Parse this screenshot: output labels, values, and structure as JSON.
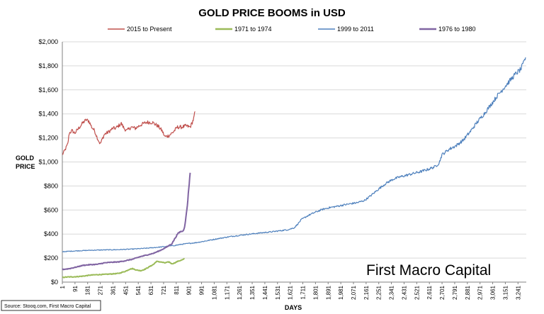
{
  "chart_data": {
    "type": "line",
    "title": "GOLD PRICE BOOMS in USD",
    "xlabel": "DAYS",
    "ylabel_line1": "GOLD",
    "ylabel_line2": "PRICE",
    "ylim": [
      0,
      2000
    ],
    "xlim": [
      1,
      3300
    ],
    "y_ticks": [
      {
        "value": 0,
        "label": "$0"
      },
      {
        "value": 200,
        "label": "$200"
      },
      {
        "value": 400,
        "label": "$400"
      },
      {
        "value": 600,
        "label": "$600"
      },
      {
        "value": 800,
        "label": "$800"
      },
      {
        "value": 1000,
        "label": "$1,000"
      },
      {
        "value": 1200,
        "label": "$1,200"
      },
      {
        "value": 1400,
        "label": "$1,400"
      },
      {
        "value": 1600,
        "label": "$1,600"
      },
      {
        "value": 1800,
        "label": "$1,800"
      },
      {
        "value": 2000,
        "label": "$2,000"
      }
    ],
    "x_ticks": [
      {
        "value": 1,
        "label": "1"
      },
      {
        "value": 91,
        "label": "91"
      },
      {
        "value": 181,
        "label": "181"
      },
      {
        "value": 271,
        "label": "271"
      },
      {
        "value": 361,
        "label": "361"
      },
      {
        "value": 451,
        "label": "451"
      },
      {
        "value": 541,
        "label": "541"
      },
      {
        "value": 631,
        "label": "631"
      },
      {
        "value": 721,
        "label": "721"
      },
      {
        "value": 811,
        "label": "811"
      },
      {
        "value": 901,
        "label": "901"
      },
      {
        "value": 991,
        "label": "991"
      },
      {
        "value": 1081,
        "label": "1,081"
      },
      {
        "value": 1171,
        "label": "1,171"
      },
      {
        "value": 1261,
        "label": "1,261"
      },
      {
        "value": 1351,
        "label": "1,351"
      },
      {
        "value": 1441,
        "label": "1,441"
      },
      {
        "value": 1531,
        "label": "1,531"
      },
      {
        "value": 1621,
        "label": "1,621"
      },
      {
        "value": 1711,
        "label": "1,711"
      },
      {
        "value": 1801,
        "label": "1,801"
      },
      {
        "value": 1891,
        "label": "1,891"
      },
      {
        "value": 1981,
        "label": "1,981"
      },
      {
        "value": 2071,
        "label": "2,071"
      },
      {
        "value": 2161,
        "label": "2,161"
      },
      {
        "value": 2251,
        "label": "2,251"
      },
      {
        "value": 2341,
        "label": "2,341"
      },
      {
        "value": 2431,
        "label": "2,431"
      },
      {
        "value": 2521,
        "label": "2,521"
      },
      {
        "value": 2611,
        "label": "2,611"
      },
      {
        "value": 2701,
        "label": "2,701"
      },
      {
        "value": 2791,
        "label": "2,791"
      },
      {
        "value": 2881,
        "label": "2,881"
      },
      {
        "value": 2971,
        "label": "2,971"
      },
      {
        "value": 3061,
        "label": "3,061"
      },
      {
        "value": 3151,
        "label": "3,151"
      },
      {
        "value": 3241,
        "label": "3,241"
      }
    ],
    "legend": [
      "2015 to Present",
      "1971 to 1974",
      "1999 to 2011",
      "1976 to 1980"
    ],
    "series": [
      {
        "name": "2015 to Present",
        "color": "#c0504d",
        "points": [
          [
            1,
            1060
          ],
          [
            20,
            1100
          ],
          [
            40,
            1150
          ],
          [
            50,
            1240
          ],
          [
            70,
            1260
          ],
          [
            90,
            1240
          ],
          [
            110,
            1270
          ],
          [
            130,
            1300
          ],
          [
            150,
            1330
          ],
          [
            170,
            1350
          ],
          [
            190,
            1340
          ],
          [
            210,
            1290
          ],
          [
            230,
            1260
          ],
          [
            250,
            1200
          ],
          [
            270,
            1150
          ],
          [
            285,
            1190
          ],
          [
            300,
            1230
          ],
          [
            330,
            1250
          ],
          [
            360,
            1280
          ],
          [
            380,
            1280
          ],
          [
            400,
            1300
          ],
          [
            420,
            1320
          ],
          [
            440,
            1280
          ],
          [
            460,
            1260
          ],
          [
            490,
            1290
          ],
          [
            520,
            1280
          ],
          [
            560,
            1310
          ],
          [
            600,
            1330
          ],
          [
            640,
            1330
          ],
          [
            680,
            1300
          ],
          [
            710,
            1260
          ],
          [
            730,
            1210
          ],
          [
            760,
            1220
          ],
          [
            790,
            1250
          ],
          [
            820,
            1290
          ],
          [
            850,
            1290
          ],
          [
            880,
            1300
          ],
          [
            910,
            1290
          ],
          [
            925,
            1330
          ],
          [
            935,
            1360
          ],
          [
            945,
            1420
          ]
        ]
      },
      {
        "name": "1971 to 1974",
        "color": "#9bbb59",
        "points": [
          [
            1,
            40
          ],
          [
            50,
            43
          ],
          [
            100,
            45
          ],
          [
            150,
            50
          ],
          [
            200,
            58
          ],
          [
            250,
            62
          ],
          [
            300,
            64
          ],
          [
            350,
            68
          ],
          [
            400,
            72
          ],
          [
            450,
            90
          ],
          [
            480,
            108
          ],
          [
            500,
            112
          ],
          [
            530,
            100
          ],
          [
            560,
            95
          ],
          [
            590,
            108
          ],
          [
            620,
            128
          ],
          [
            650,
            148
          ],
          [
            670,
            172
          ],
          [
            700,
            168
          ],
          [
            730,
            160
          ],
          [
            760,
            168
          ],
          [
            780,
            152
          ],
          [
            800,
            160
          ],
          [
            820,
            172
          ],
          [
            840,
            180
          ],
          [
            860,
            188
          ],
          [
            870,
            195
          ]
        ]
      },
      {
        "name": "1999 to 2011",
        "color": "#4f81bd",
        "points": [
          [
            1,
            253
          ],
          [
            100,
            260
          ],
          [
            200,
            265
          ],
          [
            300,
            268
          ],
          [
            400,
            270
          ],
          [
            500,
            275
          ],
          [
            600,
            282
          ],
          [
            700,
            292
          ],
          [
            800,
            305
          ],
          [
            850,
            315
          ],
          [
            900,
            322
          ],
          [
            950,
            328
          ],
          [
            1000,
            338
          ],
          [
            1100,
            360
          ],
          [
            1200,
            380
          ],
          [
            1300,
            395
          ],
          [
            1400,
            408
          ],
          [
            1500,
            420
          ],
          [
            1550,
            428
          ],
          [
            1600,
            435
          ],
          [
            1650,
            452
          ],
          [
            1680,
            490
          ],
          [
            1700,
            520
          ],
          [
            1750,
            555
          ],
          [
            1800,
            582
          ],
          [
            1850,
            605
          ],
          [
            1900,
            620
          ],
          [
            1950,
            630
          ],
          [
            2000,
            642
          ],
          [
            2050,
            652
          ],
          [
            2100,
            662
          ],
          [
            2150,
            680
          ],
          [
            2200,
            725
          ],
          [
            2250,
            775
          ],
          [
            2300,
            820
          ],
          [
            2350,
            855
          ],
          [
            2400,
            875
          ],
          [
            2450,
            890
          ],
          [
            2500,
            905
          ],
          [
            2550,
            920
          ],
          [
            2600,
            938
          ],
          [
            2650,
            960
          ],
          [
            2680,
            990
          ],
          [
            2700,
            1060
          ],
          [
            2750,
            1105
          ],
          [
            2800,
            1135
          ],
          [
            2850,
            1180
          ],
          [
            2900,
            1250
          ],
          [
            2950,
            1330
          ],
          [
            3000,
            1400
          ],
          [
            3050,
            1480
          ],
          [
            3100,
            1560
          ],
          [
            3150,
            1630
          ],
          [
            3200,
            1700
          ],
          [
            3230,
            1740
          ],
          [
            3260,
            1770
          ],
          [
            3280,
            1820
          ],
          [
            3295,
            1870
          ]
        ]
      },
      {
        "name": "1976 to 1980",
        "color": "#8064a2",
        "points": [
          [
            1,
            105
          ],
          [
            50,
            112
          ],
          [
            100,
            125
          ],
          [
            150,
            140
          ],
          [
            200,
            145
          ],
          [
            250,
            148
          ],
          [
            300,
            160
          ],
          [
            350,
            165
          ],
          [
            400,
            168
          ],
          [
            450,
            178
          ],
          [
            500,
            190
          ],
          [
            550,
            210
          ],
          [
            600,
            225
          ],
          [
            650,
            240
          ],
          [
            700,
            265
          ],
          [
            740,
            290
          ],
          [
            780,
            320
          ],
          [
            800,
            360
          ],
          [
            820,
            400
          ],
          [
            840,
            420
          ],
          [
            860,
            425
          ],
          [
            870,
            460
          ],
          [
            880,
            540
          ],
          [
            890,
            640
          ],
          [
            900,
            780
          ],
          [
            910,
            910
          ]
        ]
      }
    ]
  },
  "watermark": "First Macro Capital",
  "source": "Source: Stooq.com, First Macro Capital"
}
